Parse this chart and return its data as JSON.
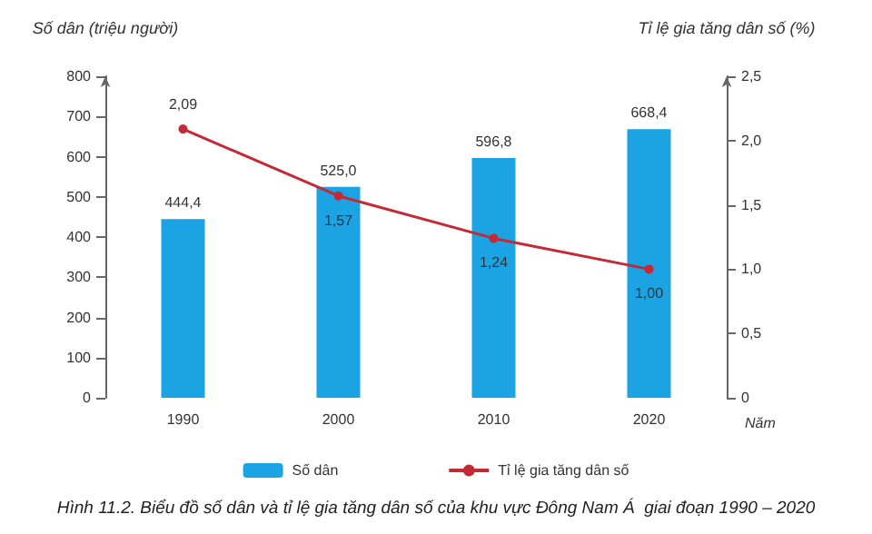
{
  "chart_data": {
    "type": "bar",
    "title": "Hình 11.2. Biểu đồ số dân và tỉ lệ gia tăng dân số của khu vực Đông Nam Á  giai đoạn 1990 – 2020",
    "xlabel": "Năm",
    "ylabel": "Số dân (triệu người)",
    "y2label": "Tỉ lệ gia tăng dân số (%)",
    "categories": [
      "1990",
      "2000",
      "2010",
      "2020"
    ],
    "series": [
      {
        "name": "Số dân",
        "color": "#1ba3e3",
        "values": [
          444.4,
          525.0,
          596.8,
          668.4
        ],
        "value_labels": [
          "444,4",
          "525,0",
          "596,8",
          "668,4"
        ]
      },
      {
        "name": "Tỉ lệ gia tăng dân số",
        "type": "line",
        "axis": "y2",
        "color": "#c42a35",
        "values": [
          2.09,
          1.57,
          1.24,
          1.0
        ],
        "value_labels": [
          "2,09",
          "1,57",
          "1,24",
          "1,00"
        ]
      }
    ],
    "ylim": [
      0,
      800
    ],
    "yticks": [
      0,
      100,
      200,
      300,
      400,
      500,
      600,
      700,
      800
    ],
    "y2lim": [
      0,
      2.5
    ],
    "y2ticks": [
      0,
      {
        "value": 0.5,
        "label": "0,5"
      },
      {
        "value": 1,
        "label": "1,0"
      },
      {
        "value": 1.5,
        "label": "1,5"
      },
      {
        "value": 2,
        "label": "2,0"
      },
      {
        "value": 2.5,
        "label": "2,5"
      }
    ],
    "grid": false,
    "legend": "bottom",
    "marker": "circle",
    "line_style": "solid"
  }
}
